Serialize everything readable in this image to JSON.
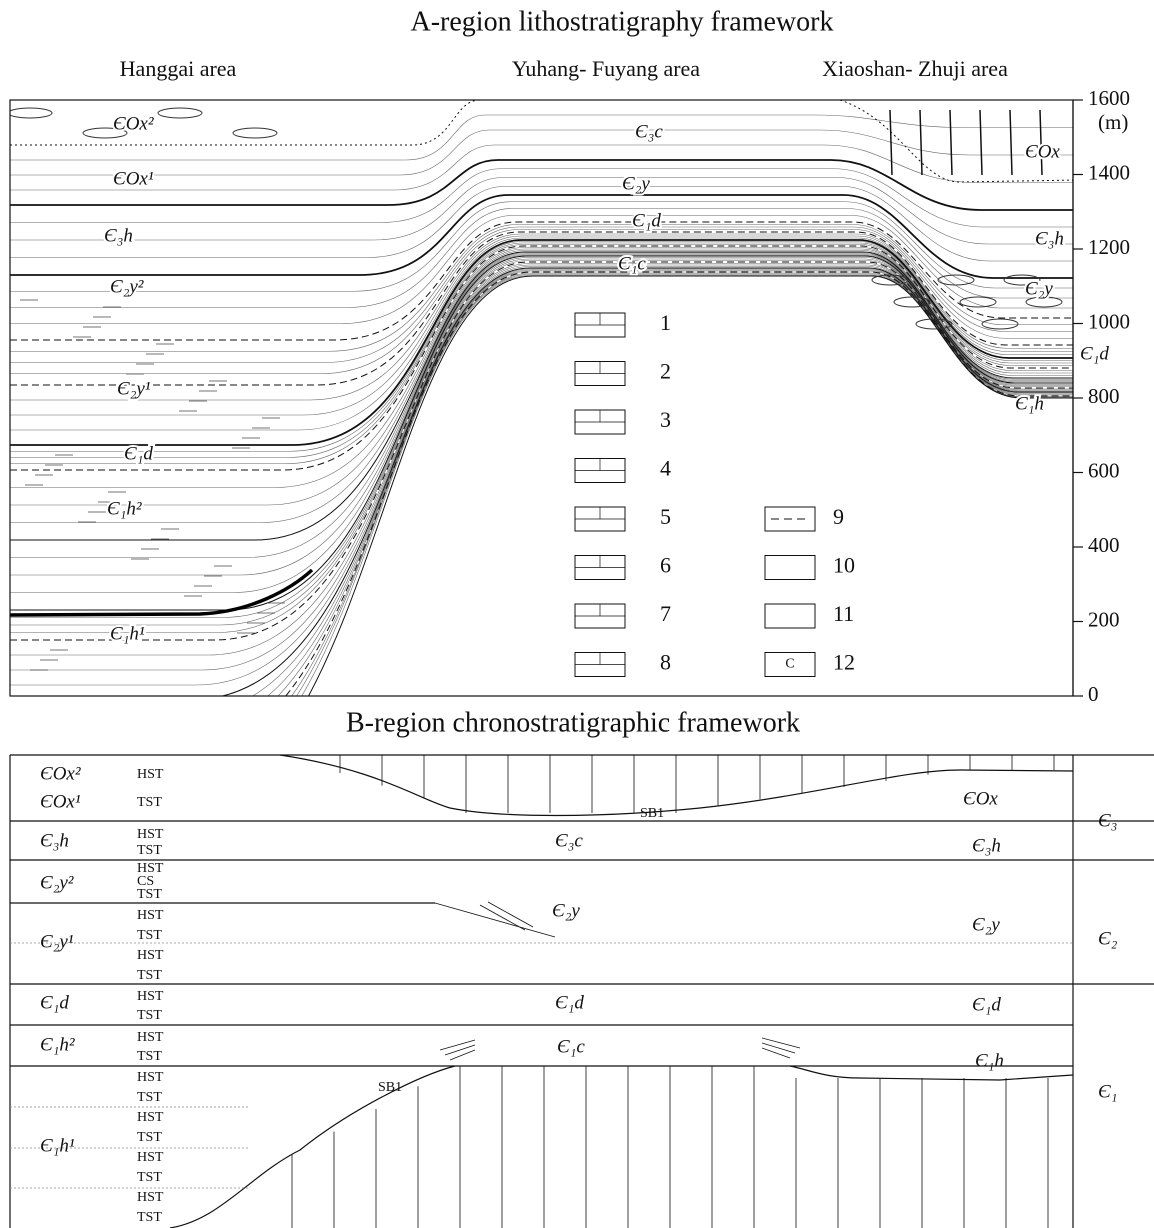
{
  "panel_a": {
    "title": "A-region lithostratigraphy framework",
    "areas": [
      "Hanggai area",
      "Yuhang- Fuyang area",
      "Xiaoshan- Zhuji area"
    ],
    "units": [
      "ЄOx²",
      "ЄOx¹",
      "Є₃h",
      "Є₂y²",
      "Є₂y¹",
      "Є₁d",
      "Є₁h²",
      "Є₁h¹",
      "Є₃c",
      "Є₂y",
      "Є₁d",
      "Є₁c",
      "ЄOx",
      "Є₃h",
      "Є₂y",
      "Є₁d",
      "Є₁h"
    ],
    "legend": [
      1,
      2,
      3,
      4,
      5,
      6,
      7,
      8,
      9,
      10,
      11,
      12
    ],
    "legend_symbol_12": "C",
    "axis": {
      "unit": "(m)",
      "ticks": [
        0,
        200,
        400,
        600,
        800,
        1000,
        1200,
        1400,
        1600
      ]
    }
  },
  "panel_b": {
    "title": "B-region chronostratigraphic framework",
    "rows": [
      {
        "unit": "ЄOx²",
        "tracts": [
          "HST"
        ]
      },
      {
        "unit": "ЄOx¹",
        "tracts": [
          "TST"
        ]
      },
      {
        "unit": "Є₃h",
        "tracts": [
          "HST",
          "TST"
        ]
      },
      {
        "unit": "Є₂y²",
        "tracts": [
          "HST",
          "CS",
          "TST"
        ]
      },
      {
        "unit": "Є₂y¹",
        "tracts": [
          "HST",
          "TST",
          "HST",
          "TST"
        ]
      },
      {
        "unit": "Є₁d",
        "tracts": [
          "HST",
          "TST"
        ]
      },
      {
        "unit": "Є₁h²",
        "tracts": [
          "HST",
          "TST"
        ]
      },
      {
        "unit": "Є₁h¹",
        "tracts": [
          "HST",
          "TST",
          "HST",
          "TST",
          "HST",
          "TST",
          "HST",
          "TST"
        ]
      }
    ],
    "middle_labels": [
      "Є₃c",
      "Є₂y",
      "Є₁d",
      "Є₁c"
    ],
    "right_labels": [
      "ЄOx",
      "Є₃h",
      "Є₂y",
      "Є₁d",
      "Є₁h"
    ],
    "eras": [
      "Є₃",
      "Є₂",
      "Є₁"
    ],
    "boundaries": [
      "SB1",
      "SB1"
    ]
  }
}
